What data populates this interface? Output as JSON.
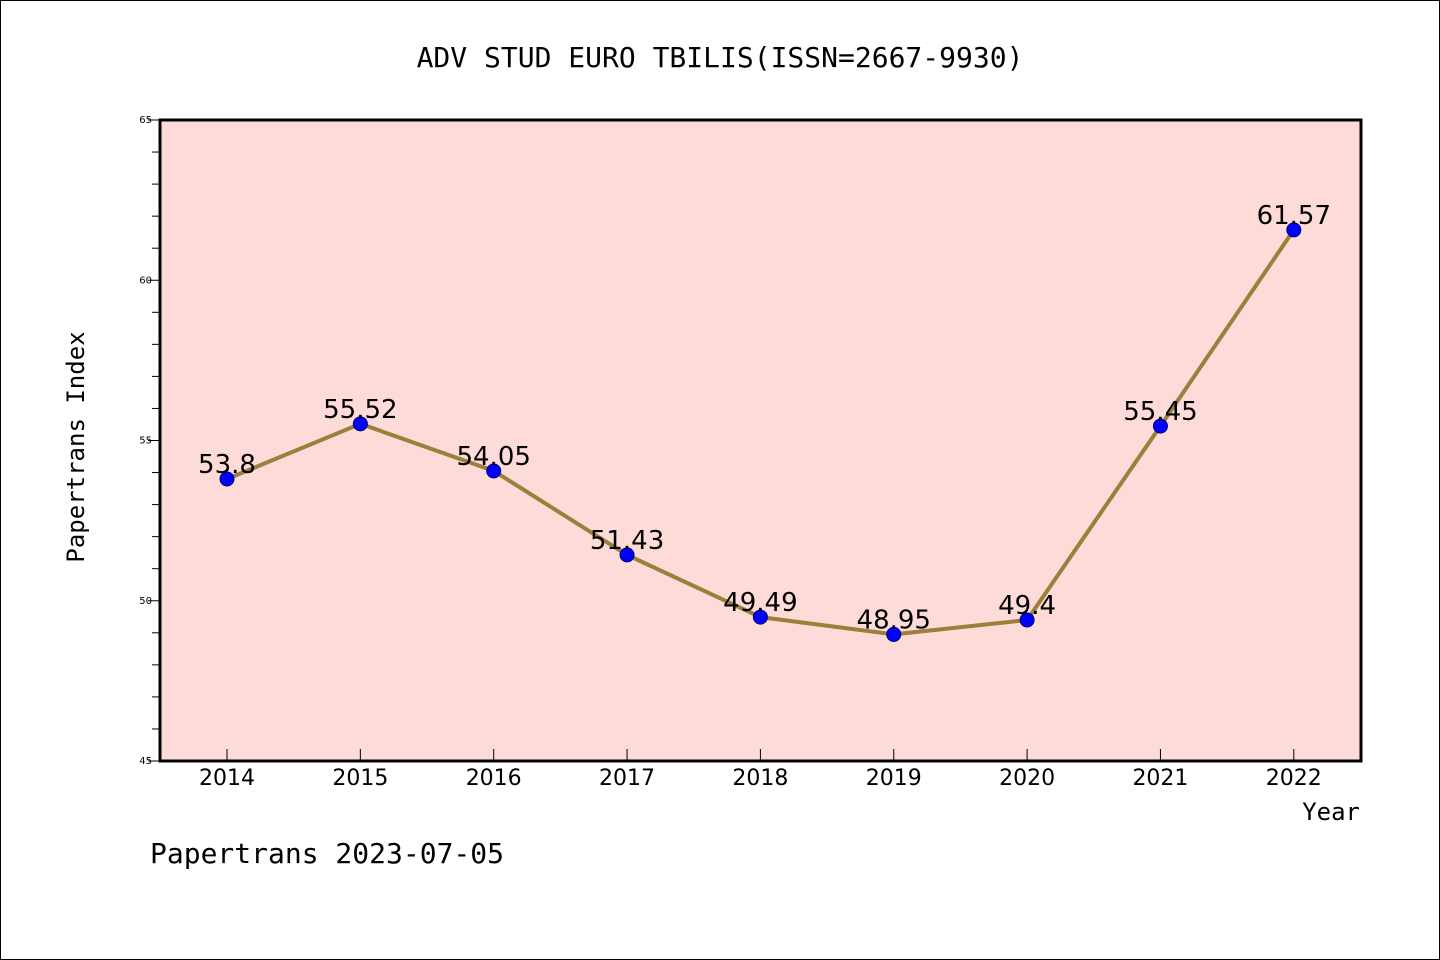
{
  "chart_data": {
    "type": "line",
    "title": "ADV STUD EURO TBILIS(ISSN=2667-9930)",
    "xlabel": "Year",
    "ylabel": "Papertrans Index",
    "categories": [
      "2014",
      "2015",
      "2016",
      "2017",
      "2018",
      "2019",
      "2020",
      "2021",
      "2022"
    ],
    "series": [
      {
        "values": [
          53.8,
          55.52,
          54.05,
          51.43,
          49.49,
          48.95,
          49.4,
          55.45,
          61.57
        ]
      }
    ],
    "data_labels": [
      "53.8",
      "55.52",
      "54.05",
      "51.43",
      "49.49",
      "48.95",
      "49.4",
      "55.45",
      "61.57"
    ],
    "ylim": [
      45,
      65
    ],
    "y_major_ticks": [
      45,
      50,
      55,
      60,
      65
    ],
    "y_minor_step": 1,
    "plot_background": "#fddbd8",
    "line_color": "#9b7f3a",
    "marker_color": "#0000ff",
    "grid": false,
    "legend": "none"
  },
  "footer": {
    "text": "Papertrans 2023-07-05"
  }
}
